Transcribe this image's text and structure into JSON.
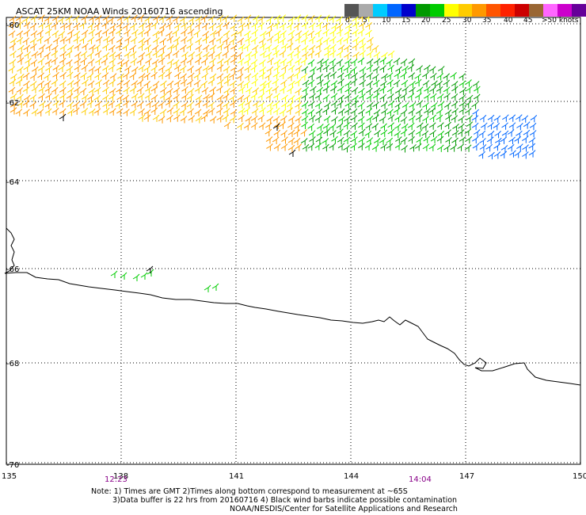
{
  "title": "ASCAT 25KM NOAA Winds 20160716 ascending",
  "legend": {
    "colors": [
      "#555555",
      "#aaaaaa",
      "#00ccff",
      "#0066ff",
      "#0000cc",
      "#009900",
      "#00cc00",
      "#ffff00",
      "#ffcc00",
      "#ff9900",
      "#ff5500",
      "#ff2200",
      "#cc0000",
      "#996633",
      "#ff66ff",
      "#cc00cc",
      "#660099"
    ],
    "labels": [
      "0",
      "5",
      "10",
      "15",
      "20",
      "25",
      "30",
      "35",
      "40",
      "45",
      ">50 knots"
    ]
  },
  "axes": {
    "lat_labels": [
      "-60",
      "-62",
      "-64",
      "-66",
      "-68",
      "-70"
    ],
    "lon_labels": [
      "135",
      "138",
      "141",
      "144",
      "147",
      "150"
    ]
  },
  "times": [
    "12:23",
    "14:04"
  ],
  "notes": {
    "line1": "Note: 1) Times are GMT 2)Times along bottom correspond to measurement at ~65S",
    "line2": "3)Data buffer is 22 hrs from 20160716 4) Black wind barbs indicate possible contamination",
    "line3": "NOAA/NESDIS/Center for Satellite Applications and Research"
  }
}
